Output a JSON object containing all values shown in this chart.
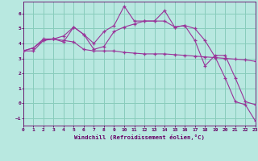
{
  "xlabel": "Windchill (Refroidissement éolien,°C)",
  "xlim": [
    0,
    23
  ],
  "ylim": [
    -1.5,
    6.8
  ],
  "yticks": [
    -1,
    0,
    1,
    2,
    3,
    4,
    5,
    6
  ],
  "xticks": [
    0,
    1,
    2,
    3,
    4,
    5,
    6,
    7,
    8,
    9,
    10,
    11,
    12,
    13,
    14,
    15,
    16,
    17,
    18,
    19,
    20,
    21,
    22,
    23
  ],
  "bg_color": "#b8e8e0",
  "grid_color": "#88ccbb",
  "line_color": "#993399",
  "line1_y": [
    3.5,
    3.7,
    4.2,
    4.3,
    4.2,
    4.1,
    3.6,
    3.5,
    3.5,
    3.5,
    3.4,
    3.35,
    3.3,
    3.3,
    3.3,
    3.25,
    3.2,
    3.15,
    3.1,
    3.05,
    3.0,
    2.95,
    2.9,
    2.8
  ],
  "line2_y": [
    3.5,
    3.7,
    4.3,
    4.3,
    4.5,
    5.1,
    4.6,
    3.6,
    3.8,
    4.8,
    5.1,
    5.3,
    5.5,
    5.5,
    6.2,
    5.1,
    5.2,
    4.2,
    2.5,
    3.2,
    3.2,
    1.7,
    0.1,
    -0.1
  ],
  "line3_y": [
    3.5,
    3.5,
    4.2,
    4.3,
    4.1,
    5.1,
    4.6,
    4.0,
    4.8,
    5.2,
    6.5,
    5.5,
    5.5,
    5.5,
    5.5,
    5.1,
    5.2,
    5.0,
    4.2,
    3.1,
    1.7,
    0.1,
    -0.1,
    -1.2
  ]
}
